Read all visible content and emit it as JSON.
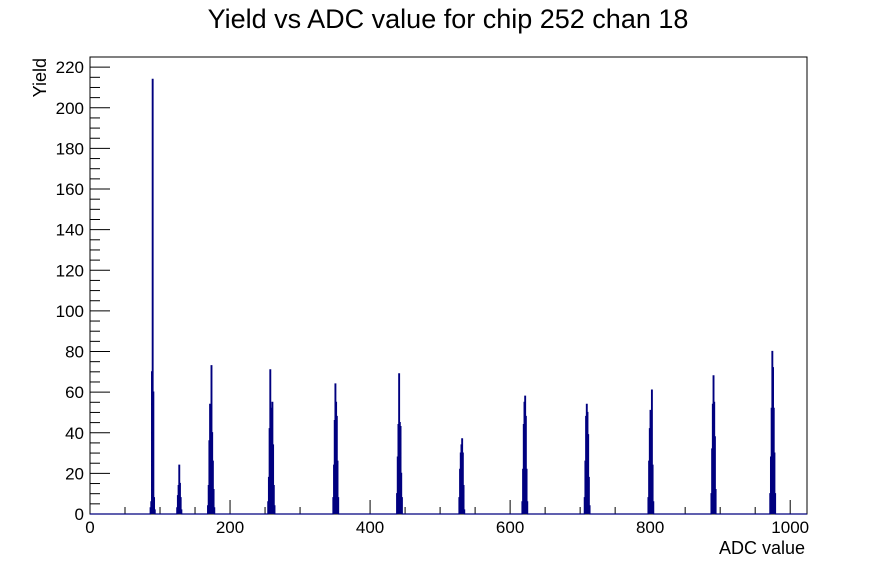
{
  "chart_data": {
    "type": "histogram",
    "title": "Yield vs ADC value for chip 252 chan 18",
    "xlabel": "ADC value",
    "ylabel": "Yield",
    "xlim": [
      0,
      1024
    ],
    "ylim": [
      0,
      225
    ],
    "xticks": [
      0,
      200,
      400,
      600,
      800,
      1000
    ],
    "yticks": [
      0,
      20,
      40,
      60,
      80,
      100,
      120,
      140,
      160,
      180,
      200,
      220
    ],
    "grid": false,
    "legend": "none",
    "line_color": "#00007f",
    "bin_width": 1,
    "points": [
      [
        85,
        0
      ],
      [
        86,
        3
      ],
      [
        87,
        6
      ],
      [
        88,
        70
      ],
      [
        89,
        214
      ],
      [
        90,
        60
      ],
      [
        91,
        8
      ],
      [
        92,
        2
      ],
      [
        93,
        0
      ],
      [
        122,
        0
      ],
      [
        124,
        3
      ],
      [
        125,
        9
      ],
      [
        126,
        14
      ],
      [
        127,
        24
      ],
      [
        128,
        15
      ],
      [
        129,
        8
      ],
      [
        130,
        2
      ],
      [
        132,
        0
      ],
      [
        167,
        0
      ],
      [
        168,
        4
      ],
      [
        169,
        14
      ],
      [
        170,
        36
      ],
      [
        171,
        54
      ],
      [
        172,
        46
      ],
      [
        173,
        73
      ],
      [
        174,
        40
      ],
      [
        175,
        26
      ],
      [
        176,
        12
      ],
      [
        177,
        3
      ],
      [
        178,
        0
      ],
      [
        253,
        0
      ],
      [
        254,
        6
      ],
      [
        255,
        18
      ],
      [
        256,
        42
      ],
      [
        257,
        71
      ],
      [
        258,
        52
      ],
      [
        259,
        30
      ],
      [
        260,
        55
      ],
      [
        261,
        34
      ],
      [
        262,
        14
      ],
      [
        263,
        4
      ],
      [
        264,
        0
      ],
      [
        346,
        0
      ],
      [
        347,
        8
      ],
      [
        348,
        24
      ],
      [
        349,
        46
      ],
      [
        350,
        64
      ],
      [
        351,
        55
      ],
      [
        352,
        48
      ],
      [
        353,
        26
      ],
      [
        354,
        8
      ],
      [
        355,
        0
      ],
      [
        437,
        0
      ],
      [
        438,
        10
      ],
      [
        439,
        28
      ],
      [
        440,
        44
      ],
      [
        441,
        69
      ],
      [
        442,
        45
      ],
      [
        443,
        43
      ],
      [
        444,
        20
      ],
      [
        445,
        8
      ],
      [
        446,
        0
      ],
      [
        526,
        0
      ],
      [
        527,
        8
      ],
      [
        528,
        22
      ],
      [
        529,
        30
      ],
      [
        530,
        34
      ],
      [
        531,
        37
      ],
      [
        532,
        30
      ],
      [
        533,
        14
      ],
      [
        534,
        2
      ],
      [
        535,
        0
      ],
      [
        616,
        0
      ],
      [
        617,
        6
      ],
      [
        618,
        22
      ],
      [
        619,
        44
      ],
      [
        620,
        55
      ],
      [
        621,
        58
      ],
      [
        622,
        48
      ],
      [
        623,
        22
      ],
      [
        624,
        6
      ],
      [
        625,
        0
      ],
      [
        705,
        0
      ],
      [
        706,
        8
      ],
      [
        707,
        26
      ],
      [
        708,
        48
      ],
      [
        709,
        54
      ],
      [
        710,
        50
      ],
      [
        711,
        39
      ],
      [
        712,
        18
      ],
      [
        713,
        4
      ],
      [
        714,
        0
      ],
      [
        796,
        0
      ],
      [
        797,
        8
      ],
      [
        798,
        26
      ],
      [
        799,
        42
      ],
      [
        800,
        51
      ],
      [
        801,
        44
      ],
      [
        802,
        61
      ],
      [
        803,
        24
      ],
      [
        804,
        6
      ],
      [
        805,
        0
      ],
      [
        886,
        0
      ],
      [
        887,
        10
      ],
      [
        888,
        32
      ],
      [
        889,
        54
      ],
      [
        890,
        68
      ],
      [
        891,
        55
      ],
      [
        892,
        38
      ],
      [
        893,
        12
      ],
      [
        894,
        0
      ],
      [
        970,
        0
      ],
      [
        971,
        10
      ],
      [
        972,
        28
      ],
      [
        973,
        52
      ],
      [
        974,
        80
      ],
      [
        975,
        72
      ],
      [
        976,
        52
      ],
      [
        977,
        30
      ],
      [
        978,
        10
      ],
      [
        979,
        0
      ]
    ]
  }
}
